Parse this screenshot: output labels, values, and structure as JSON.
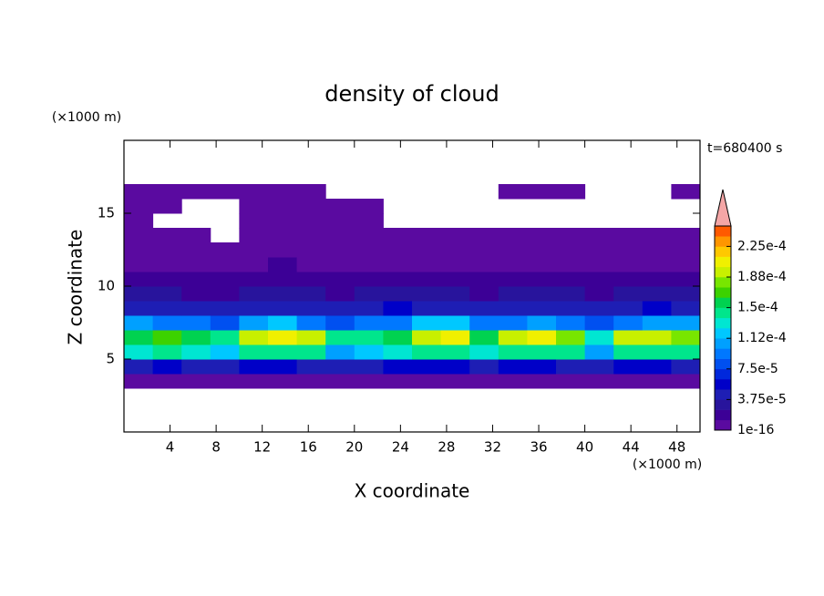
{
  "chart_data": {
    "type": "contour",
    "title": "density of cloud",
    "x_label": "X coordinate",
    "y_label": "Z coordinate",
    "x_unit": "(×1000 m)",
    "y_unit": "(×1000 m)",
    "time_label": "t=680400 s",
    "xlim": [
      0,
      50
    ],
    "ylim": [
      0,
      20
    ],
    "xticks": [
      4,
      8,
      12,
      16,
      20,
      24,
      28,
      32,
      36,
      40,
      44,
      48
    ],
    "yticks": [
      5,
      10,
      15
    ],
    "x": [
      1.25,
      3.75,
      6.25,
      8.75,
      11.25,
      13.75,
      16.25,
      18.75,
      21.25,
      23.75,
      26.25,
      28.75,
      31.25,
      33.75,
      36.25,
      38.75,
      41.25,
      43.75,
      46.25,
      48.75
    ],
    "y": [
      3.5,
      4.5,
      5.5,
      6.5,
      7.5,
      8.5,
      9.5,
      10.5,
      11.5,
      12.5,
      13.5,
      14.5,
      15.5,
      16.5
    ],
    "values": [
      [
        1e-05,
        1e-05,
        1e-05,
        1e-05,
        1e-05,
        1e-05,
        1e-05,
        1e-05,
        1e-05,
        1e-05,
        1e-05,
        1e-05,
        1e-05,
        1e-05,
        1e-05,
        1e-05,
        1e-05,
        1e-05,
        1e-05,
        1e-05
      ],
      [
        5e-05,
        6e-05,
        5e-05,
        5e-05,
        6e-05,
        6e-05,
        5e-05,
        4e-05,
        5e-05,
        6e-05,
        6e-05,
        6e-05,
        5e-05,
        6e-05,
        6e-05,
        5e-05,
        5e-05,
        6e-05,
        6e-05,
        5e-05
      ],
      [
        0.00013,
        0.00014,
        0.00013,
        0.00012,
        0.00014,
        0.00015,
        0.00014,
        0.00011,
        0.00012,
        0.00013,
        0.00014,
        0.00015,
        0.00013,
        0.00014,
        0.00015,
        0.00014,
        0.00011,
        0.00014,
        0.00015,
        0.00014
      ],
      [
        0.00016,
        0.00017,
        0.00016,
        0.00015,
        0.00019,
        0.00021,
        0.0002,
        0.00014,
        0.00015,
        0.00016,
        0.0002,
        0.00021,
        0.00016,
        0.00019,
        0.00021,
        0.00018,
        0.00013,
        0.00019,
        0.0002,
        0.00018
      ],
      [
        0.00011,
        0.0001,
        9e-05,
        8e-05,
        0.00011,
        0.00012,
        0.0001,
        8e-05,
        9e-05,
        0.0001,
        0.00012,
        0.00012,
        9e-05,
        0.0001,
        0.00011,
        9e-05,
        8e-05,
        0.0001,
        0.00011,
        0.00011
      ],
      [
        5e-05,
        5e-05,
        4e-05,
        4e-05,
        5e-05,
        5e-05,
        5e-05,
        4e-05,
        5e-05,
        6e-05,
        5e-05,
        5e-05,
        4e-05,
        5e-05,
        5e-05,
        5e-05,
        4e-05,
        5e-05,
        6e-05,
        5e-05
      ],
      [
        3e-05,
        3e-05,
        2.5e-05,
        2.5e-05,
        3e-05,
        3e-05,
        3e-05,
        2.5e-05,
        3e-05,
        3e-05,
        3e-05,
        3e-05,
        2.5e-05,
        3e-05,
        3e-05,
        3e-05,
        2.5e-05,
        3e-05,
        3e-05,
        3e-05
      ],
      [
        2e-05,
        2e-05,
        1.5e-05,
        1.5e-05,
        2e-05,
        2e-05,
        1.5e-05,
        1.5e-05,
        2e-05,
        2e-05,
        2e-05,
        1.5e-05,
        1.5e-05,
        2e-05,
        2e-05,
        1.5e-05,
        1.5e-05,
        2e-05,
        2e-05,
        2e-05
      ],
      [
        1e-05,
        1e-05,
        1e-05,
        1e-05,
        1e-05,
        1.4e-05,
        1e-05,
        1e-05,
        1e-05,
        1e-05,
        1e-05,
        1e-05,
        1e-05,
        1e-05,
        1e-05,
        1e-05,
        1e-05,
        1e-05,
        1e-05,
        1e-05
      ],
      [
        8e-06,
        8e-06,
        8e-06,
        8e-06,
        8e-06,
        8e-06,
        8e-06,
        8e-06,
        8e-06,
        8e-06,
        8e-06,
        8e-06,
        8e-06,
        8e-06,
        8e-06,
        8e-06,
        8e-06,
        8e-06,
        8e-06,
        8e-06
      ],
      [
        5e-06,
        5e-06,
        5e-06,
        null,
        5e-06,
        5e-06,
        5e-06,
        5e-06,
        5e-06,
        5e-06,
        5e-06,
        5e-06,
        5e-06,
        5e-06,
        5e-06,
        5e-06,
        5e-06,
        5e-06,
        5e-06,
        5e-06
      ],
      [
        5e-06,
        null,
        null,
        null,
        5e-06,
        5e-06,
        5e-06,
        5e-06,
        5e-06,
        null,
        null,
        null,
        null,
        null,
        null,
        null,
        null,
        null,
        null,
        null
      ],
      [
        5e-06,
        5e-06,
        null,
        null,
        5e-06,
        5e-06,
        5e-06,
        5e-06,
        5e-06,
        null,
        null,
        null,
        null,
        null,
        null,
        null,
        null,
        null,
        null,
        null
      ],
      [
        5e-06,
        5e-06,
        5e-06,
        5e-06,
        5e-06,
        5e-06,
        5e-06,
        null,
        null,
        null,
        null,
        null,
        null,
        5e-06,
        5e-06,
        5e-06,
        null,
        null,
        null,
        5e-06
      ]
    ],
    "clim": [
      1e-16,
      0.00025
    ],
    "colors": [
      "#5a0aa0",
      "#3c0096",
      "#28149c",
      "#1e1eb4",
      "#0000c8",
      "#0028dc",
      "#0050f0",
      "#0078ff",
      "#00a0ff",
      "#00c8ff",
      "#00e6d2",
      "#00e68c",
      "#00d250",
      "#3cd200",
      "#78e600",
      "#c8f000",
      "#f0f000",
      "#ffc800",
      "#ff9600",
      "#ff5a00"
    ],
    "over_color": "#f4a6a6",
    "colorbar_ticks": [
      {
        "value": 1e-16,
        "label": "1e-16"
      },
      {
        "value": 3.75e-05,
        "label": "3.75e-5"
      },
      {
        "value": 7.5e-05,
        "label": "7.5e-5"
      },
      {
        "value": 0.0001125,
        "label": "1.12e-4"
      },
      {
        "value": 0.00015,
        "label": "1.5e-4"
      },
      {
        "value": 0.0001875,
        "label": "1.88e-4"
      },
      {
        "value": 0.000225,
        "label": "2.25e-4"
      }
    ]
  }
}
